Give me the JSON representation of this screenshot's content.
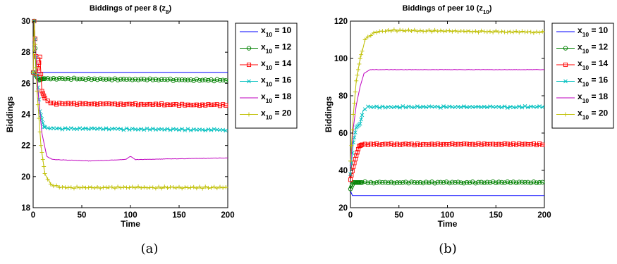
{
  "chart_data": [
    {
      "type": "line",
      "title": "Biddings of peer 8 (z",
      "title_sub": "8",
      "title_end": ")",
      "xlabel": "Time",
      "ylabel": "Biddings",
      "xlim": [
        0,
        200
      ],
      "ylim": [
        18,
        30
      ],
      "xticks": [
        0,
        50,
        100,
        150,
        200
      ],
      "yticks": [
        18,
        20,
        22,
        24,
        26,
        28,
        30
      ],
      "caption": "(a)",
      "legend_position": "outside-right",
      "series": [
        {
          "name": "x",
          "sub": "10",
          "suffix": " = 10",
          "color": "#0000ff",
          "marker": "none",
          "points": [
            [
              0,
              26.6
            ],
            [
              2,
              26.7
            ],
            [
              200,
              26.7
            ]
          ]
        },
        {
          "name": "x",
          "sub": "10",
          "suffix": " = 12",
          "color": "#008000",
          "marker": "circle",
          "points": [
            [
              0,
              26.7
            ],
            [
              1,
              30
            ],
            [
              3,
              26.5
            ],
            [
              6,
              26.2
            ],
            [
              10,
              26.3
            ],
            [
              200,
              26.2
            ]
          ]
        },
        {
          "name": "x",
          "sub": "10",
          "suffix": " = 14",
          "color": "#ff0000",
          "marker": "square",
          "points": [
            [
              0,
              26.7
            ],
            [
              1,
              30
            ],
            [
              4,
              26.6
            ],
            [
              7,
              27.7
            ],
            [
              9,
              25.5
            ],
            [
              13,
              24.9
            ],
            [
              20,
              24.7
            ],
            [
              200,
              24.6
            ]
          ]
        },
        {
          "name": "x",
          "sub": "10",
          "suffix": " = 16",
          "color": "#00bfbf",
          "marker": "x",
          "points": [
            [
              0,
              26.7
            ],
            [
              1,
              30
            ],
            [
              4,
              26.5
            ],
            [
              7,
              24.2
            ],
            [
              11,
              23.2
            ],
            [
              18,
              23.1
            ],
            [
              200,
              23.0
            ]
          ]
        },
        {
          "name": "x",
          "sub": "10",
          "suffix": " = 18",
          "color": "#bf00bf",
          "marker": "none",
          "points": [
            [
              0,
              26.7
            ],
            [
              1,
              30
            ],
            [
              5,
              25.5
            ],
            [
              9,
              22.8
            ],
            [
              14,
              21.3
            ],
            [
              20,
              21.1
            ],
            [
              60,
              21.0
            ],
            [
              95,
              21.1
            ],
            [
              100,
              21.3
            ],
            [
              105,
              21.1
            ],
            [
              200,
              21.2
            ]
          ]
        },
        {
          "name": "x",
          "sub": "10",
          "suffix": " = 20",
          "color": "#bfbf00",
          "marker": "plus",
          "points": [
            [
              0,
              26.7
            ],
            [
              1,
              30
            ],
            [
              4,
              25.5
            ],
            [
              8,
              22.0
            ],
            [
              12,
              20.2
            ],
            [
              18,
              19.5
            ],
            [
              30,
              19.3
            ],
            [
              200,
              19.3
            ]
          ]
        }
      ]
    },
    {
      "type": "line",
      "title": "Biddings of peer 10 (z",
      "title_sub": "10",
      "title_end": ")",
      "xlabel": "Time",
      "ylabel": "Biddings",
      "xlim": [
        0,
        200
      ],
      "ylim": [
        20,
        120
      ],
      "xticks": [
        0,
        50,
        100,
        150,
        200
      ],
      "yticks": [
        20,
        40,
        60,
        80,
        100,
        120
      ],
      "caption": "(b)",
      "legend_position": "outside-right",
      "series": [
        {
          "name": "x",
          "sub": "10",
          "suffix": " = 10",
          "color": "#0000ff",
          "marker": "none",
          "points": [
            [
              0,
              29
            ],
            [
              2,
              26.5
            ],
            [
              200,
              26.5
            ]
          ]
        },
        {
          "name": "x",
          "sub": "10",
          "suffix": " = 12",
          "color": "#008000",
          "marker": "circle",
          "points": [
            [
              0,
              30
            ],
            [
              3,
              33.5
            ],
            [
              6,
              33.5
            ],
            [
              200,
              33.5
            ]
          ]
        },
        {
          "name": "x",
          "sub": "10",
          "suffix": " = 14",
          "color": "#ff0000",
          "marker": "square",
          "points": [
            [
              0,
              35
            ],
            [
              3,
              42
            ],
            [
              6,
              48
            ],
            [
              9,
              53
            ],
            [
              13,
              54
            ],
            [
              200,
              54
            ]
          ]
        },
        {
          "name": "x",
          "sub": "10",
          "suffix": " = 16",
          "color": "#00bfbf",
          "marker": "x",
          "points": [
            [
              0,
              38
            ],
            [
              3,
              55
            ],
            [
              6,
              63
            ],
            [
              10,
              65
            ],
            [
              13,
              72
            ],
            [
              17,
              74
            ],
            [
              200,
              74
            ]
          ]
        },
        {
          "name": "x",
          "sub": "10",
          "suffix": " = 18",
          "color": "#bf00bf",
          "marker": "none",
          "points": [
            [
              0,
              42
            ],
            [
              3,
              63
            ],
            [
              6,
              75
            ],
            [
              10,
              85
            ],
            [
              14,
              92
            ],
            [
              20,
              94
            ],
            [
              200,
              94
            ]
          ]
        },
        {
          "name": "x",
          "sub": "10",
          "suffix": " = 20",
          "color": "#bfbf00",
          "marker": "plus",
          "points": [
            [
              0,
              45
            ],
            [
              3,
              70
            ],
            [
              6,
              88
            ],
            [
              10,
              100
            ],
            [
              15,
              110
            ],
            [
              25,
              114
            ],
            [
              40,
              115
            ],
            [
              200,
              114
            ]
          ]
        }
      ]
    }
  ]
}
